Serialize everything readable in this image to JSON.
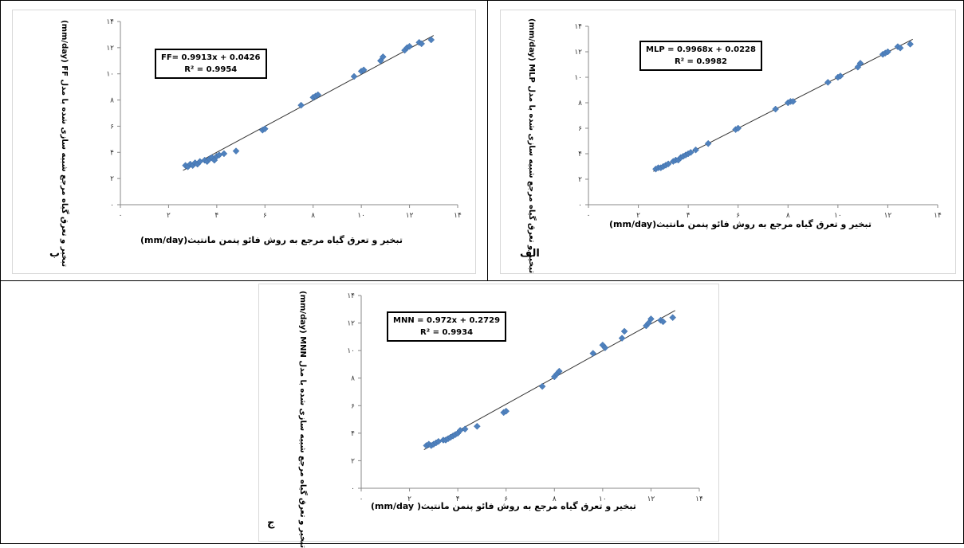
{
  "chart_data": [
    {
      "type": "scatter",
      "panel_label": "ب",
      "equation": "FF= 0.9913x + 0.0426",
      "r2": "R² = 0.9954",
      "xlabel": "تبخیر و تعرق گیاه مرجع به روش فائو پنمن مانتیث(mm/day)",
      "ylabel": "(mm/day) FF تبخیر و تعرق گیاه مرجع شبیه سازی شده با مدل",
      "xlim": [
        0,
        14
      ],
      "ylim": [
        0,
        14
      ],
      "xticks": [
        "۰",
        "۲",
        "۴",
        "۶",
        "۸",
        "۱۰",
        "۱۲",
        "۱۴"
      ],
      "yticks": [
        "۰",
        "۲",
        "۴",
        "۶",
        "۸",
        "۱۰",
        "۱۲",
        "۱۴"
      ],
      "trendline": {
        "slope": 0.9913,
        "intercept": 0.0426
      },
      "x": [
        2.7,
        2.8,
        2.9,
        3.0,
        3.1,
        3.2,
        3.3,
        3.5,
        3.6,
        3.7,
        3.8,
        3.9,
        4.0,
        4.1,
        4.3,
        4.8,
        5.9,
        6.0,
        7.5,
        8.0,
        8.1,
        8.2,
        9.7,
        10.0,
        10.1,
        10.8,
        10.9,
        11.8,
        11.9,
        12.0,
        12.4,
        12.5,
        12.9
      ],
      "y": [
        3.0,
        2.9,
        3.1,
        3.0,
        3.2,
        3.1,
        3.3,
        3.4,
        3.3,
        3.5,
        3.6,
        3.4,
        3.7,
        3.8,
        3.9,
        4.1,
        5.7,
        5.8,
        7.6,
        8.2,
        8.3,
        8.4,
        9.8,
        10.2,
        10.3,
        11.0,
        11.3,
        11.8,
        12.0,
        12.1,
        12.4,
        12.3,
        12.6
      ]
    },
    {
      "type": "scatter",
      "panel_label": "الف",
      "equation": "MLP = 0.9968x + 0.0228",
      "r2": "R² = 0.9982",
      "xlabel": "تبخیر و تعرق گیاه مرجع به روش فائو پنمن مانتیث(mm/day)",
      "ylabel": "(mm/day) MLP تبخیر و تعرق گیاه مرجع شبیه سازی شده با مدل",
      "xlim": [
        0,
        14
      ],
      "ylim": [
        0,
        14
      ],
      "xticks": [
        "۰",
        "۲",
        "۴",
        "۶",
        "۸",
        "۱۰",
        "۱۲",
        "۱۴"
      ],
      "yticks": [
        "۰",
        "۲",
        "۴",
        "۶",
        "۸",
        "۱۰",
        "۱۲",
        "۱۴"
      ],
      "trendline": {
        "slope": 0.9968,
        "intercept": 0.0228
      },
      "x": [
        2.7,
        2.8,
        2.9,
        3.0,
        3.1,
        3.2,
        3.4,
        3.5,
        3.6,
        3.7,
        3.8,
        3.9,
        4.0,
        4.1,
        4.3,
        4.8,
        5.9,
        6.0,
        7.5,
        8.0,
        8.1,
        8.2,
        9.6,
        10.0,
        10.1,
        10.8,
        10.9,
        11.8,
        11.9,
        12.0,
        12.4,
        12.5,
        12.9
      ],
      "y": [
        2.8,
        2.9,
        2.9,
        3.0,
        3.1,
        3.2,
        3.4,
        3.5,
        3.5,
        3.7,
        3.8,
        3.9,
        4.0,
        4.1,
        4.3,
        4.8,
        5.9,
        6.0,
        7.5,
        8.0,
        8.1,
        8.1,
        9.6,
        10.0,
        10.1,
        10.8,
        11.1,
        11.8,
        11.9,
        12.0,
        12.4,
        12.3,
        12.6
      ]
    },
    {
      "type": "scatter",
      "panel_label": "ج",
      "equation": "MNN = 0.972x + 0.2729",
      "r2": "R² = 0.9934",
      "xlabel": "تبخیر و تعرق گیاه مرجع به روش فائو پنمن مانتیث( mm/day)",
      "ylabel": "(mm/day) MNN تبخیر و تعرق گیاه مرجع شبیه سازی شده با مدل",
      "xlim": [
        0,
        14
      ],
      "ylim": [
        0,
        14
      ],
      "xticks": [
        "۰",
        "۲",
        "۴",
        "۶",
        "۸",
        "۱۰",
        "۱۲",
        "۱۴"
      ],
      "yticks": [
        "۰",
        "۲",
        "۴",
        "۶",
        "۸",
        "۱۰",
        "۱۲",
        "۱۴"
      ],
      "trendline": {
        "slope": 0.972,
        "intercept": 0.2729
      },
      "x": [
        2.7,
        2.8,
        2.9,
        3.0,
        3.1,
        3.2,
        3.4,
        3.5,
        3.6,
        3.7,
        3.8,
        3.9,
        4.0,
        4.1,
        4.3,
        4.8,
        5.9,
        6.0,
        7.5,
        8.0,
        8.1,
        8.2,
        9.6,
        10.0,
        10.1,
        10.8,
        10.9,
        11.8,
        11.9,
        12.0,
        12.4,
        12.5,
        12.9
      ],
      "y": [
        3.1,
        3.2,
        3.1,
        3.2,
        3.3,
        3.4,
        3.5,
        3.5,
        3.6,
        3.7,
        3.8,
        3.9,
        4.0,
        4.2,
        4.3,
        4.5,
        5.5,
        5.6,
        7.4,
        8.1,
        8.3,
        8.5,
        9.8,
        10.4,
        10.2,
        10.9,
        11.4,
        11.8,
        12.0,
        12.3,
        12.2,
        12.1,
        12.4
      ]
    }
  ]
}
